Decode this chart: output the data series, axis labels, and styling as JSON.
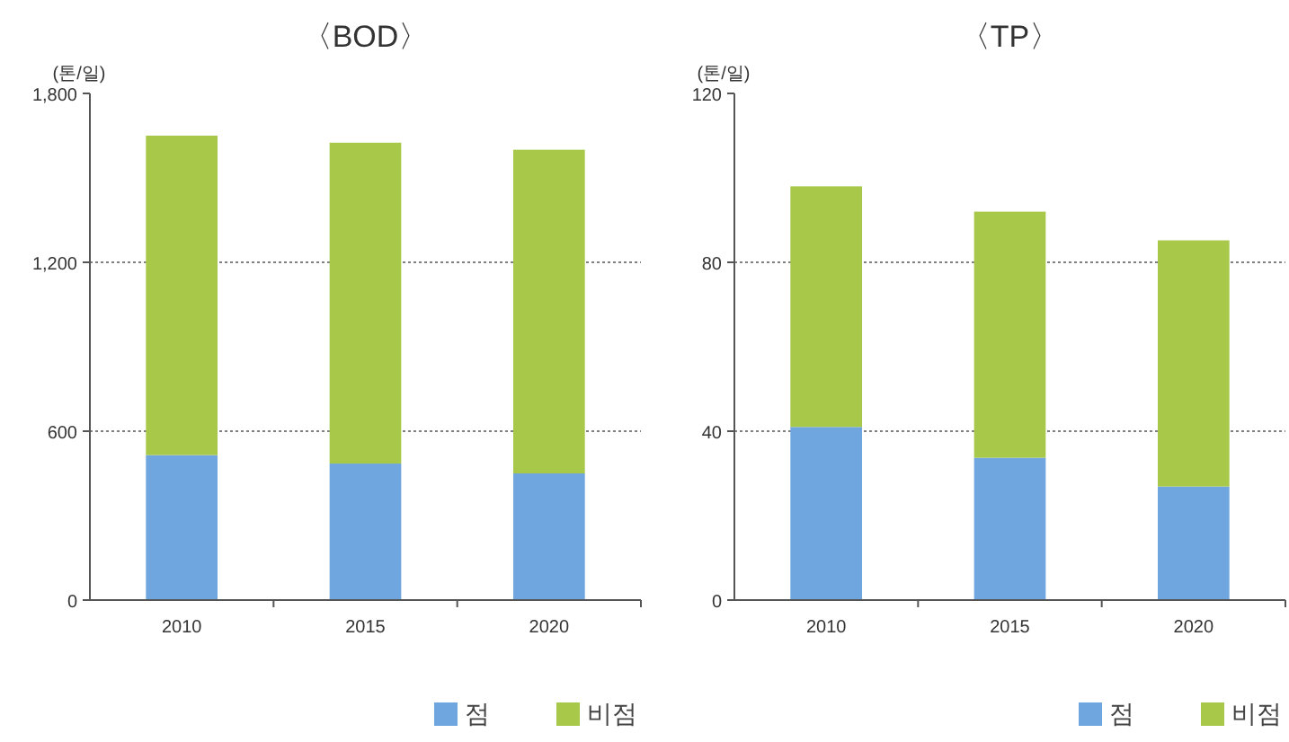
{
  "chart_data": [
    {
      "type": "bar",
      "title": "〈BOD〉",
      "ylabel": "(톤/일)",
      "categories": [
        "2010",
        "2015",
        "2020"
      ],
      "stacked": true,
      "ylim": [
        0,
        1800
      ],
      "yticks": [
        0,
        {
          "value": 600,
          "label": "600"
        },
        {
          "value": 1200,
          "label": "1,200"
        },
        {
          "value": 1800,
          "label": "1,800"
        }
      ],
      "grid": "y",
      "legend": "bottom right",
      "series": [
        {
          "name": "점",
          "color": "#6fa6df",
          "values": [
            515,
            485,
            450
          ]
        },
        {
          "name": "비점",
          "color": "#a8c84a",
          "values": [
            1135,
            1140,
            1150
          ]
        }
      ]
    },
    {
      "type": "bar",
      "title": "〈TP〉",
      "ylabel": "(톤/일)",
      "categories": [
        "2010",
        "2015",
        "2020"
      ],
      "stacked": true,
      "ylim": [
        0,
        120
      ],
      "yticks": [
        0,
        40,
        80,
        120
      ],
      "grid": "y",
      "legend": "bottom right",
      "series": [
        {
          "name": "점",
          "color": "#6fa6df",
          "values": [
            41,
            33.7,
            26.9
          ]
        },
        {
          "name": "비점",
          "color": "#a8c84a",
          "values": [
            57,
            58.3,
            58.3
          ]
        }
      ]
    }
  ]
}
